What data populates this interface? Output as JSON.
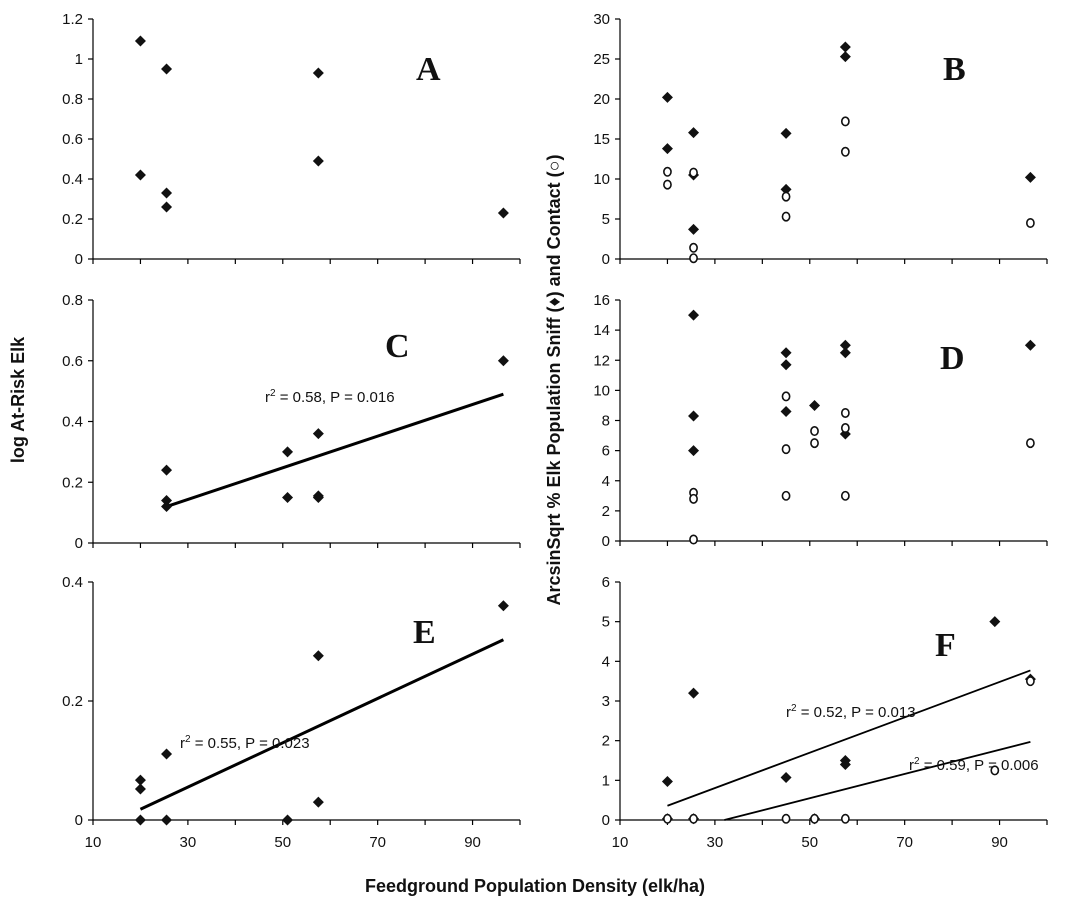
{
  "figure": {
    "ylabel_left": "log At-Risk Elk",
    "ylabel_right": "ArcsinSqrt % Elk Population Sniff (♦) and Contact (○)",
    "xlabel": "Feedground Population Density (elk/ha)"
  },
  "chart_data": [
    {
      "panel": "A",
      "type": "scatter",
      "xlim": [
        10,
        100
      ],
      "ylim": [
        0,
        1.2
      ],
      "xticks": [],
      "yticks": [
        "0",
        "0.2",
        "0.4",
        "0.6",
        "0.8",
        "1",
        "1.2"
      ],
      "ytick_values": [
        0,
        0.2,
        0.4,
        0.6,
        0.8,
        1,
        1.2
      ],
      "series": [
        {
          "marker": "diamond",
          "points": [
            [
              20,
              1.09
            ],
            [
              20,
              0.42
            ],
            [
              25.5,
              0.95
            ],
            [
              25.5,
              0.33
            ],
            [
              25.5,
              0.26
            ],
            [
              57.5,
              0.93
            ],
            [
              57.5,
              0.49
            ],
            [
              96.5,
              0.23
            ]
          ]
        }
      ],
      "fits": []
    },
    {
      "panel": "B",
      "type": "scatter",
      "xlim": [
        10,
        100
      ],
      "ylim": [
        0,
        30
      ],
      "xticks": [],
      "yticks": [
        "0",
        "5",
        "10",
        "15",
        "20",
        "25",
        "30"
      ],
      "ytick_values": [
        0,
        5,
        10,
        15,
        20,
        25,
        30
      ],
      "series": [
        {
          "marker": "diamond",
          "points": [
            [
              20,
              20.2
            ],
            [
              20,
              13.8
            ],
            [
              25.5,
              15.8
            ],
            [
              25.5,
              10.5
            ],
            [
              25.5,
              3.7
            ],
            [
              45,
              15.7
            ],
            [
              45,
              8.7
            ],
            [
              57.5,
              26.5
            ],
            [
              57.5,
              25.3
            ],
            [
              96.5,
              10.2
            ]
          ]
        },
        {
          "marker": "circle",
          "points": [
            [
              20,
              10.9
            ],
            [
              20,
              9.3
            ],
            [
              25.5,
              10.8
            ],
            [
              25.5,
              1.4
            ],
            [
              25.5,
              0.1
            ],
            [
              45,
              7.8
            ],
            [
              45,
              5.3
            ],
            [
              57.5,
              17.2
            ],
            [
              57.5,
              13.4
            ],
            [
              96.5,
              4.5
            ]
          ]
        }
      ],
      "fits": []
    },
    {
      "panel": "C",
      "type": "scatter",
      "xlim": [
        10,
        100
      ],
      "ylim": [
        0,
        0.8
      ],
      "xticks": [],
      "yticks": [
        "0",
        "0.2",
        "0.4",
        "0.6",
        "0.8"
      ],
      "ytick_values": [
        0,
        0.2,
        0.4,
        0.6,
        0.8
      ],
      "series": [
        {
          "marker": "diamond",
          "points": [
            [
              25.5,
              0.24
            ],
            [
              25.5,
              0.14
            ],
            [
              25.5,
              0.12
            ],
            [
              51,
              0.3
            ],
            [
              51,
              0.15
            ],
            [
              57.5,
              0.36
            ],
            [
              57.5,
              0.155
            ],
            [
              57.5,
              0.15
            ],
            [
              96.5,
              0.6
            ]
          ]
        }
      ],
      "fits": [
        {
          "x": [
            25.5,
            96.5
          ],
          "y": [
            0.12,
            0.49
          ],
          "label_pre": "r",
          "label_sup": "2",
          "label_post": " = 0.58, P = 0.016"
        }
      ]
    },
    {
      "panel": "D",
      "type": "scatter",
      "xlim": [
        10,
        100
      ],
      "ylim": [
        0,
        16
      ],
      "xticks": [],
      "yticks": [
        "0",
        "2",
        "4",
        "6",
        "8",
        "10",
        "12",
        "14",
        "16"
      ],
      "ytick_values": [
        0,
        2,
        4,
        6,
        8,
        10,
        12,
        14,
        16
      ],
      "series": [
        {
          "marker": "diamond",
          "points": [
            [
              25.5,
              15.0
            ],
            [
              25.5,
              8.3
            ],
            [
              25.5,
              6.0
            ],
            [
              45,
              12.5
            ],
            [
              45,
              11.7
            ],
            [
              45,
              8.6
            ],
            [
              51,
              9.0
            ],
            [
              57.5,
              13.0
            ],
            [
              57.5,
              12.5
            ],
            [
              57.5,
              7.1
            ],
            [
              96.5,
              13.0
            ]
          ]
        },
        {
          "marker": "circle",
          "points": [
            [
              25.5,
              3.2
            ],
            [
              25.5,
              2.8
            ],
            [
              25.5,
              0.1
            ],
            [
              45,
              9.6
            ],
            [
              45,
              6.1
            ],
            [
              45,
              3.0
            ],
            [
              51,
              7.3
            ],
            [
              51,
              6.5
            ],
            [
              57.5,
              8.5
            ],
            [
              57.5,
              7.5
            ],
            [
              57.5,
              3.0
            ],
            [
              96.5,
              6.5
            ]
          ]
        }
      ],
      "fits": []
    },
    {
      "panel": "E",
      "type": "scatter",
      "xlim": [
        10,
        100
      ],
      "ylim": [
        0,
        0.4
      ],
      "xticks": [
        "10",
        "30",
        "50",
        "70",
        "90"
      ],
      "xtick_values": [
        10,
        30,
        50,
        70,
        90
      ],
      "yticks": [
        "0",
        "0.2",
        "0.4"
      ],
      "ytick_values": [
        0,
        0.2,
        0.4
      ],
      "series": [
        {
          "marker": "diamond",
          "points": [
            [
              20,
              0.067
            ],
            [
              20,
              0.052
            ],
            [
              20,
              0.0
            ],
            [
              25.5,
              0.111
            ],
            [
              25.5,
              0.0
            ],
            [
              51,
              0.0
            ],
            [
              57.5,
              0.276
            ],
            [
              57.5,
              0.03
            ],
            [
              96.5,
              0.36
            ]
          ]
        }
      ],
      "fits": [
        {
          "x": [
            20,
            96.5
          ],
          "y": [
            0.018,
            0.303
          ],
          "label_pre": "r",
          "label_sup": "2",
          "label_post": " = 0.55, P = 0.023"
        }
      ]
    },
    {
      "panel": "F",
      "type": "scatter",
      "xlim": [
        10,
        100
      ],
      "ylim": [
        0,
        6
      ],
      "xticks": [
        "10",
        "30",
        "50",
        "70",
        "90"
      ],
      "xtick_values": [
        10,
        30,
        50,
        70,
        90
      ],
      "yticks": [
        "0",
        "1",
        "2",
        "3",
        "4",
        "5",
        "6"
      ],
      "ytick_values": [
        0,
        1,
        2,
        3,
        4,
        5,
        6
      ],
      "series": [
        {
          "marker": "diamond",
          "points": [
            [
              20,
              0.97
            ],
            [
              20,
              0.03
            ],
            [
              25.5,
              3.2
            ],
            [
              25.5,
              0.03
            ],
            [
              45,
              1.07
            ],
            [
              51,
              0.03
            ],
            [
              57.5,
              1.5
            ],
            [
              57.5,
              1.4
            ],
            [
              89,
              5.0
            ],
            [
              96.5,
              3.55
            ]
          ]
        },
        {
          "marker": "circle",
          "points": [
            [
              20,
              0.03
            ],
            [
              25.5,
              0.03
            ],
            [
              45,
              0.03
            ],
            [
              51,
              0.03
            ],
            [
              57.5,
              0.03
            ],
            [
              89,
              1.25
            ],
            [
              96.5,
              3.5
            ]
          ]
        }
      ],
      "fits": [
        {
          "x": [
            20,
            96.5
          ],
          "y": [
            0.36,
            3.77
          ],
          "label_pre": "r",
          "label_sup": "2",
          "label_post": " = 0.52, P = 0.013"
        },
        {
          "x": [
            32,
            96.5
          ],
          "y": [
            0.0,
            1.97
          ],
          "label_pre": "r",
          "label_sup": "2",
          "label_post": " = 0.59, P = 0.006"
        }
      ]
    }
  ]
}
